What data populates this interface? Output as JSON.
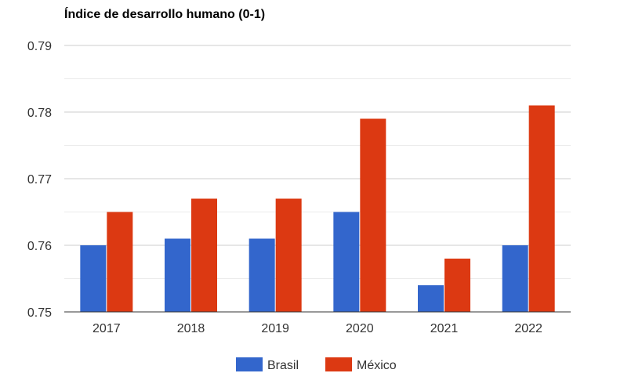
{
  "chart_data": {
    "type": "bar",
    "title": "Índice de desarrollo humano (0-1)",
    "categories": [
      "2017",
      "2018",
      "2019",
      "2020",
      "2021",
      "2022"
    ],
    "series": [
      {
        "name": "Brasil",
        "color": "#3366cc",
        "values": [
          0.76,
          0.761,
          0.761,
          0.765,
          0.754,
          0.76
        ]
      },
      {
        "name": "México",
        "color": "#dc3912",
        "values": [
          0.765,
          0.767,
          0.767,
          0.779,
          0.758,
          0.781
        ]
      }
    ],
    "ylim": [
      0.75,
      0.79
    ],
    "yticks": [
      "0.75",
      "0.76",
      "0.77",
      "0.78",
      "0.79"
    ],
    "grid": true,
    "legend": "bottom"
  }
}
